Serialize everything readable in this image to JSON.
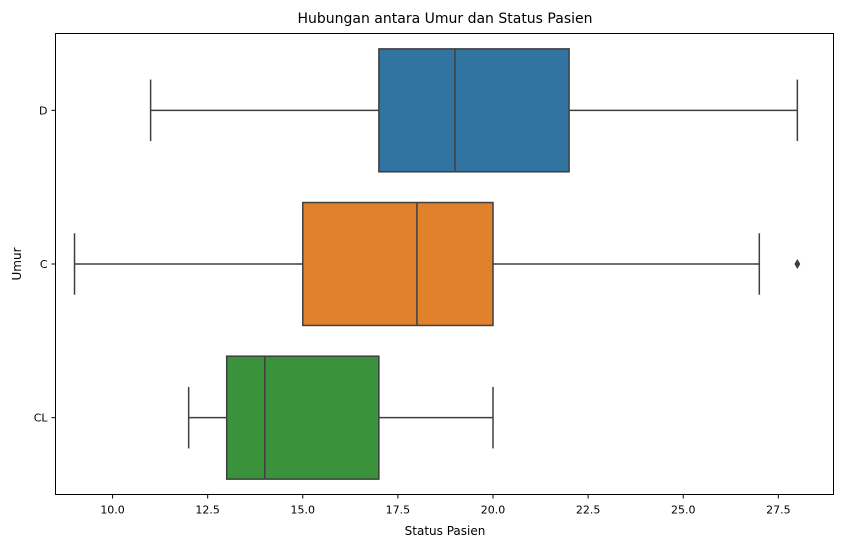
{
  "chart_data": {
    "type": "boxplot",
    "orientation": "horizontal",
    "title": "Hubungan antara Umur dan Status Pasien",
    "xlabel": "Status Pasien",
    "ylabel": "Umur",
    "xlim": [
      8.5,
      28.95
    ],
    "x_ticks": [
      10.0,
      12.5,
      15.0,
      17.5,
      20.0,
      22.5,
      25.0,
      27.5
    ],
    "x_tick_labels": [
      "10.0",
      "12.5",
      "15.0",
      "17.5",
      "20.0",
      "22.5",
      "25.0",
      "27.5"
    ],
    "categories": [
      "D",
      "C",
      "CL"
    ],
    "grid": false,
    "boxes": [
      {
        "category": "D",
        "whisker_low": 11,
        "q1": 17,
        "median": 19,
        "q3": 22,
        "whisker_high": 28,
        "outliers": [],
        "color": "#3274a1"
      },
      {
        "category": "C",
        "whisker_low": 9,
        "q1": 15,
        "median": 18,
        "q3": 20,
        "whisker_high": 27,
        "outliers": [
          28
        ],
        "color": "#e1812c"
      },
      {
        "category": "CL",
        "whisker_low": 12,
        "q1": 13,
        "median": 14,
        "q3": 17,
        "whisker_high": 20,
        "outliers": [],
        "color": "#3a923a"
      }
    ]
  }
}
